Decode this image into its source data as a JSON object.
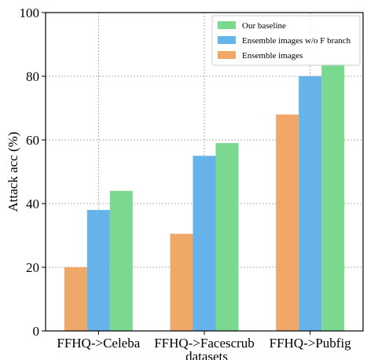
{
  "chart_data": {
    "type": "bar",
    "categories": [
      "FFHQ->Celeba",
      "FFHQ->Facescrub",
      "FFHQ->Pubfig"
    ],
    "series": [
      {
        "name": "Ensemble images",
        "values": [
          20,
          30.5,
          68
        ],
        "color": "#f0a868"
      },
      {
        "name": "Ensemble images w/o F branch",
        "values": [
          38,
          55,
          80
        ],
        "color": "#66b3ec"
      },
      {
        "name": "Our baseline",
        "values": [
          44,
          59,
          84
        ],
        "color": "#7ad98e"
      }
    ],
    "legend_order": [
      "Our baseline",
      "Ensemble images w/o F branch",
      "Ensemble images"
    ],
    "title": "",
    "xlabel": "datasets",
    "ylabel": "Attack acc (%)",
    "ylim": [
      0,
      100
    ],
    "yticks": [
      0,
      20,
      40,
      60,
      80,
      100
    ],
    "grid": true,
    "legend_position": "top-right"
  }
}
